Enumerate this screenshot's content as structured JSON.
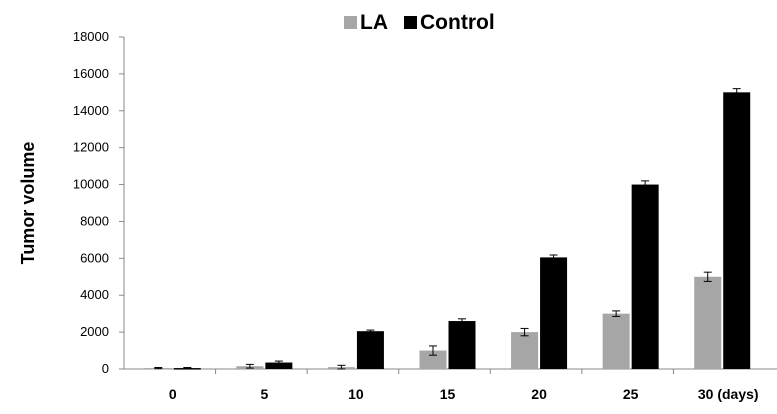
{
  "chart_data": {
    "type": "bar",
    "ylabel": "Tumor volume",
    "ylim": [
      0,
      18000
    ],
    "yticks": [
      "0",
      "2000",
      "4000",
      "6000",
      "8000",
      "10000",
      "12000",
      "14000",
      "16000",
      "18000"
    ],
    "categories": [
      "0",
      "5",
      "10",
      "15",
      "20",
      "25",
      "30 (days)"
    ],
    "legend_position": "top",
    "grid": false,
    "series": [
      {
        "name": "LA",
        "color": "#a6a6a6",
        "values": [
          50,
          150,
          100,
          1000,
          2000,
          3000,
          5000
        ],
        "errors": [
          30,
          100,
          100,
          250,
          200,
          150,
          250
        ]
      },
      {
        "name": "Control",
        "color": "#000000",
        "values": [
          50,
          350,
          2050,
          2600,
          6050,
          10000,
          15000
        ],
        "errors": [
          30,
          80,
          60,
          120,
          130,
          200,
          200
        ]
      }
    ]
  }
}
